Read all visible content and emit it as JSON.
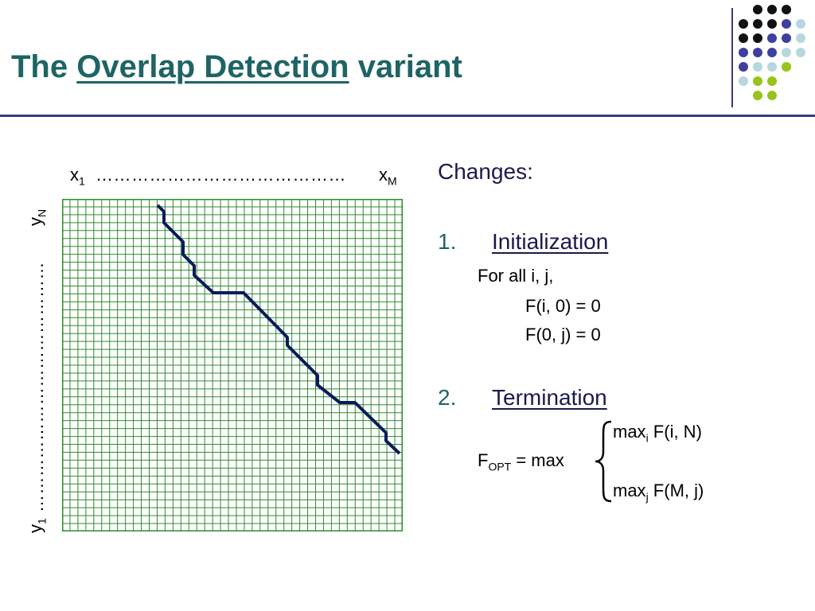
{
  "title": {
    "prefix": "The",
    "emphasis": "Overlap Detection",
    "suffix": "variant"
  },
  "diagram": {
    "x_first": "x",
    "x_first_sub": "1",
    "x_last": "x",
    "x_last_sub": "M",
    "x_dots": "……………………………………",
    "y_first": "y",
    "y_first_sub": "1",
    "y_last": "y",
    "y_last_sub": "N",
    "y_dots": "……………………………………",
    "grid_color": "#2e8b2e",
    "path_color": "#0a1a5a"
  },
  "changes": {
    "heading": "Changes:",
    "items": [
      {
        "number": "1.",
        "label": "Initialization",
        "lines": [
          "For all i, j,",
          "F(i, 0) = 0",
          "F(0, j) = 0"
        ]
      },
      {
        "number": "2.",
        "label": "Termination",
        "formula": {
          "lhs": "F",
          "lhs_sub": "OPT",
          "lhs_rest": " = max",
          "top": "max",
          "top_sub": "i",
          "top_rest": " F(i, N)",
          "bottom": "max",
          "bottom_sub": "j",
          "bottom_rest": " F(M, j)"
        }
      }
    ]
  },
  "colors": {
    "title": "#1f6464",
    "rule": "#3a3a7a",
    "accent_purple": "#3f3f9f",
    "accent_lightblue": "#b4d8de",
    "accent_green": "#99c21c"
  }
}
